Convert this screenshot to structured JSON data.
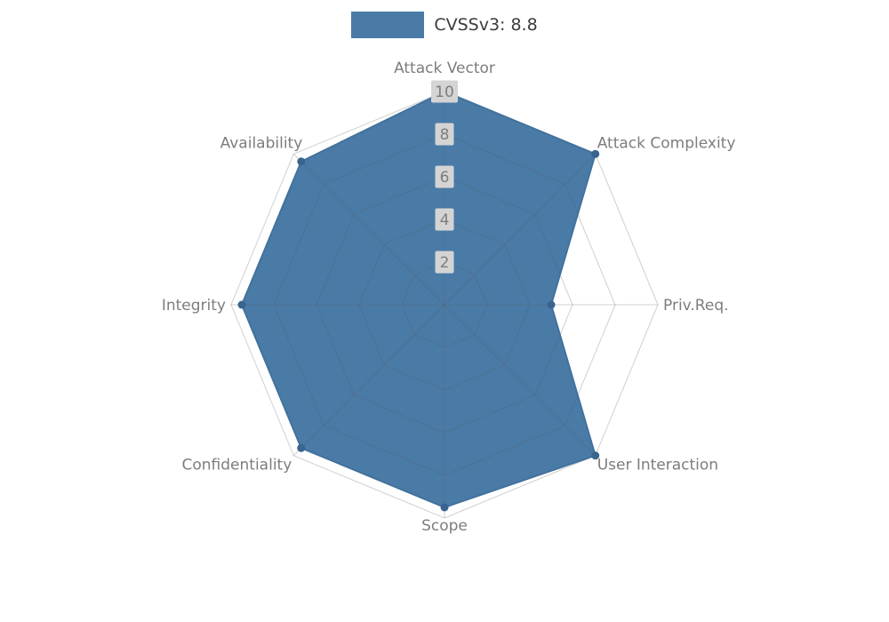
{
  "legend": {
    "label": "CVSSv3: 8.8"
  },
  "chart_data": {
    "type": "radar",
    "title": "CVSSv3: 8.8",
    "categories": [
      "Attack Vector",
      "Attack Complexity",
      "Priv.Req.",
      "User Interaction",
      "Scope",
      "Confidentiality",
      "Integrity",
      "Availability"
    ],
    "series": [
      {
        "name": "CVSSv3: 8.8",
        "values": [
          10,
          10,
          5,
          10,
          9.5,
          9.5,
          9.5,
          9.5
        ]
      }
    ],
    "ticks": [
      2,
      4,
      6,
      8,
      10
    ],
    "ylim": [
      0,
      10
    ],
    "grid": "on",
    "legend_position": "top",
    "colors": {
      "series_fill": "#4a7ba7",
      "series_stroke": "#42719c",
      "vertex_dot": "#38648f",
      "grid_line": "#555555",
      "axis_label": "#7d7d7d",
      "tick_text": "#7d7d7d",
      "tick_box": "#d4d4d4",
      "legend_text": "#3c3c3c",
      "background": "#ffffff"
    }
  }
}
